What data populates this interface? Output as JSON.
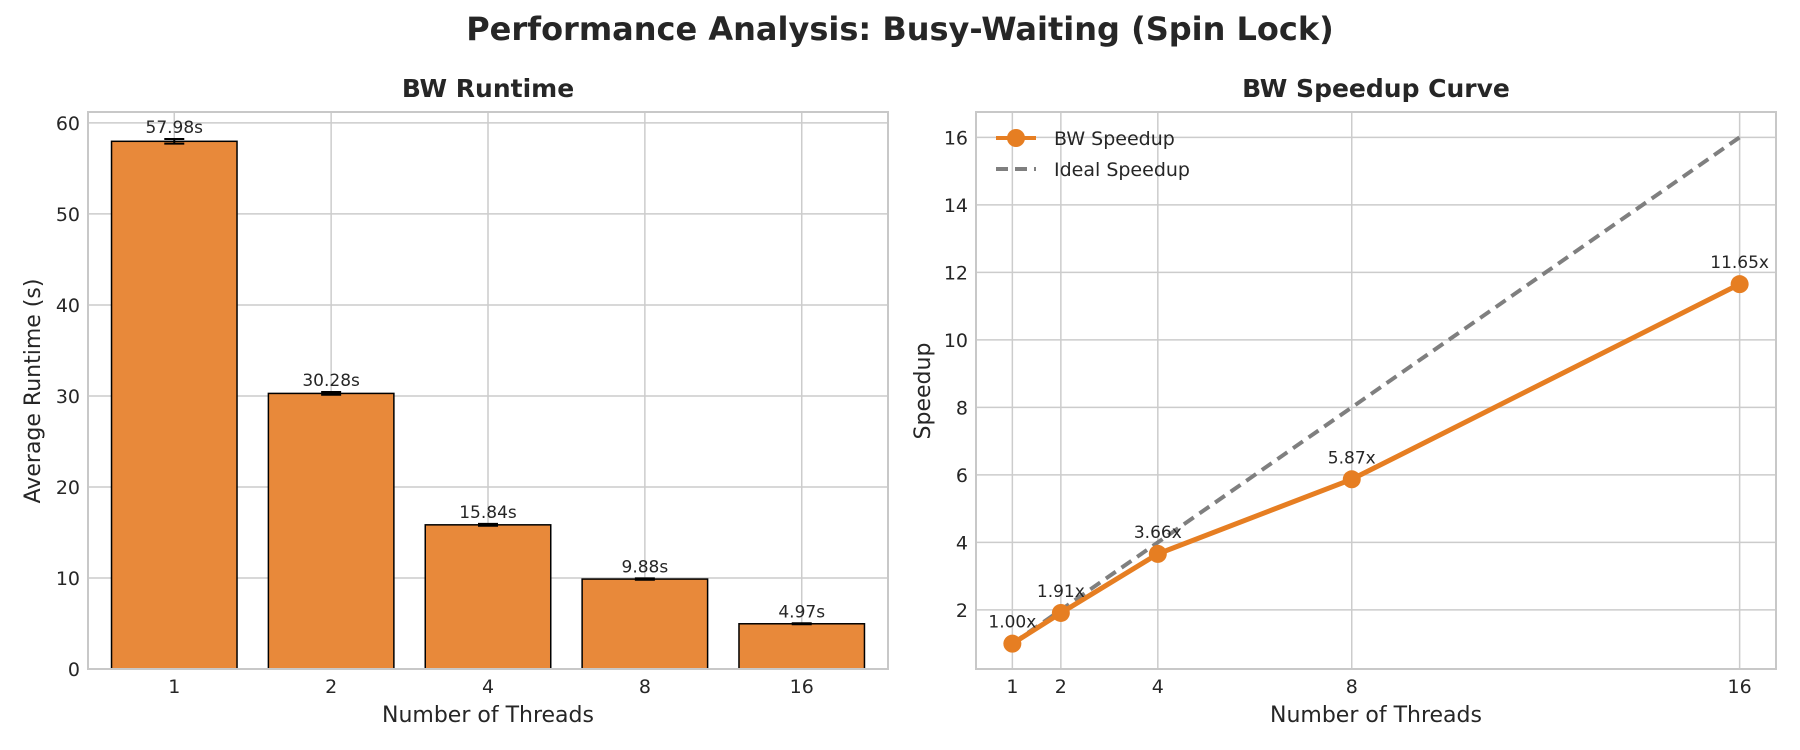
{
  "figure": {
    "title": "Performance Analysis: Busy-Waiting (Spin Lock)"
  },
  "colors": {
    "accent": "#e67e22",
    "bar_fill": "#e8893a",
    "ideal": "#7f7f7f",
    "grid": "#cccccc",
    "frame": "#c8c8c8",
    "bar_edge": "#000000"
  },
  "chart_data": [
    {
      "type": "bar",
      "title": "BW Runtime",
      "xlabel": "Number of Threads",
      "ylabel": "Average Runtime (s)",
      "categories": [
        "1",
        "2",
        "4",
        "8",
        "16"
      ],
      "values": [
        57.98,
        30.28,
        15.84,
        9.88,
        4.97
      ],
      "data_labels": [
        "57.98s",
        "30.28s",
        "15.84s",
        "9.88s",
        "4.97s"
      ],
      "error_bars": [
        0.25,
        0.15,
        0.1,
        0.08,
        0.05
      ],
      "ylim": [
        0,
        61.2
      ],
      "yticks": [
        0,
        10,
        20,
        30,
        40,
        50,
        60
      ],
      "grid": true
    },
    {
      "type": "line",
      "title": "BW Speedup Curve",
      "xlabel": "Number of Threads",
      "ylabel": "Speedup",
      "x": [
        1,
        2,
        4,
        8,
        16
      ],
      "xticks": [
        1,
        2,
        4,
        8,
        16
      ],
      "yticks": [
        2,
        4,
        6,
        8,
        10,
        12,
        14,
        16
      ],
      "xlim": [
        0.25,
        16.75
      ],
      "ylim": [
        0.25,
        16.75
      ],
      "grid": true,
      "legend_position": "top-left",
      "series": [
        {
          "name": "BW Speedup",
          "style": "solid-marker",
          "values": [
            1.0,
            1.91,
            3.66,
            5.87,
            11.65
          ],
          "data_labels": [
            "1.00x",
            "1.91x",
            "3.66x",
            "5.87x",
            "11.65x"
          ]
        },
        {
          "name": "Ideal Speedup",
          "style": "dashed",
          "values": [
            1,
            2,
            4,
            8,
            16
          ]
        }
      ]
    }
  ]
}
